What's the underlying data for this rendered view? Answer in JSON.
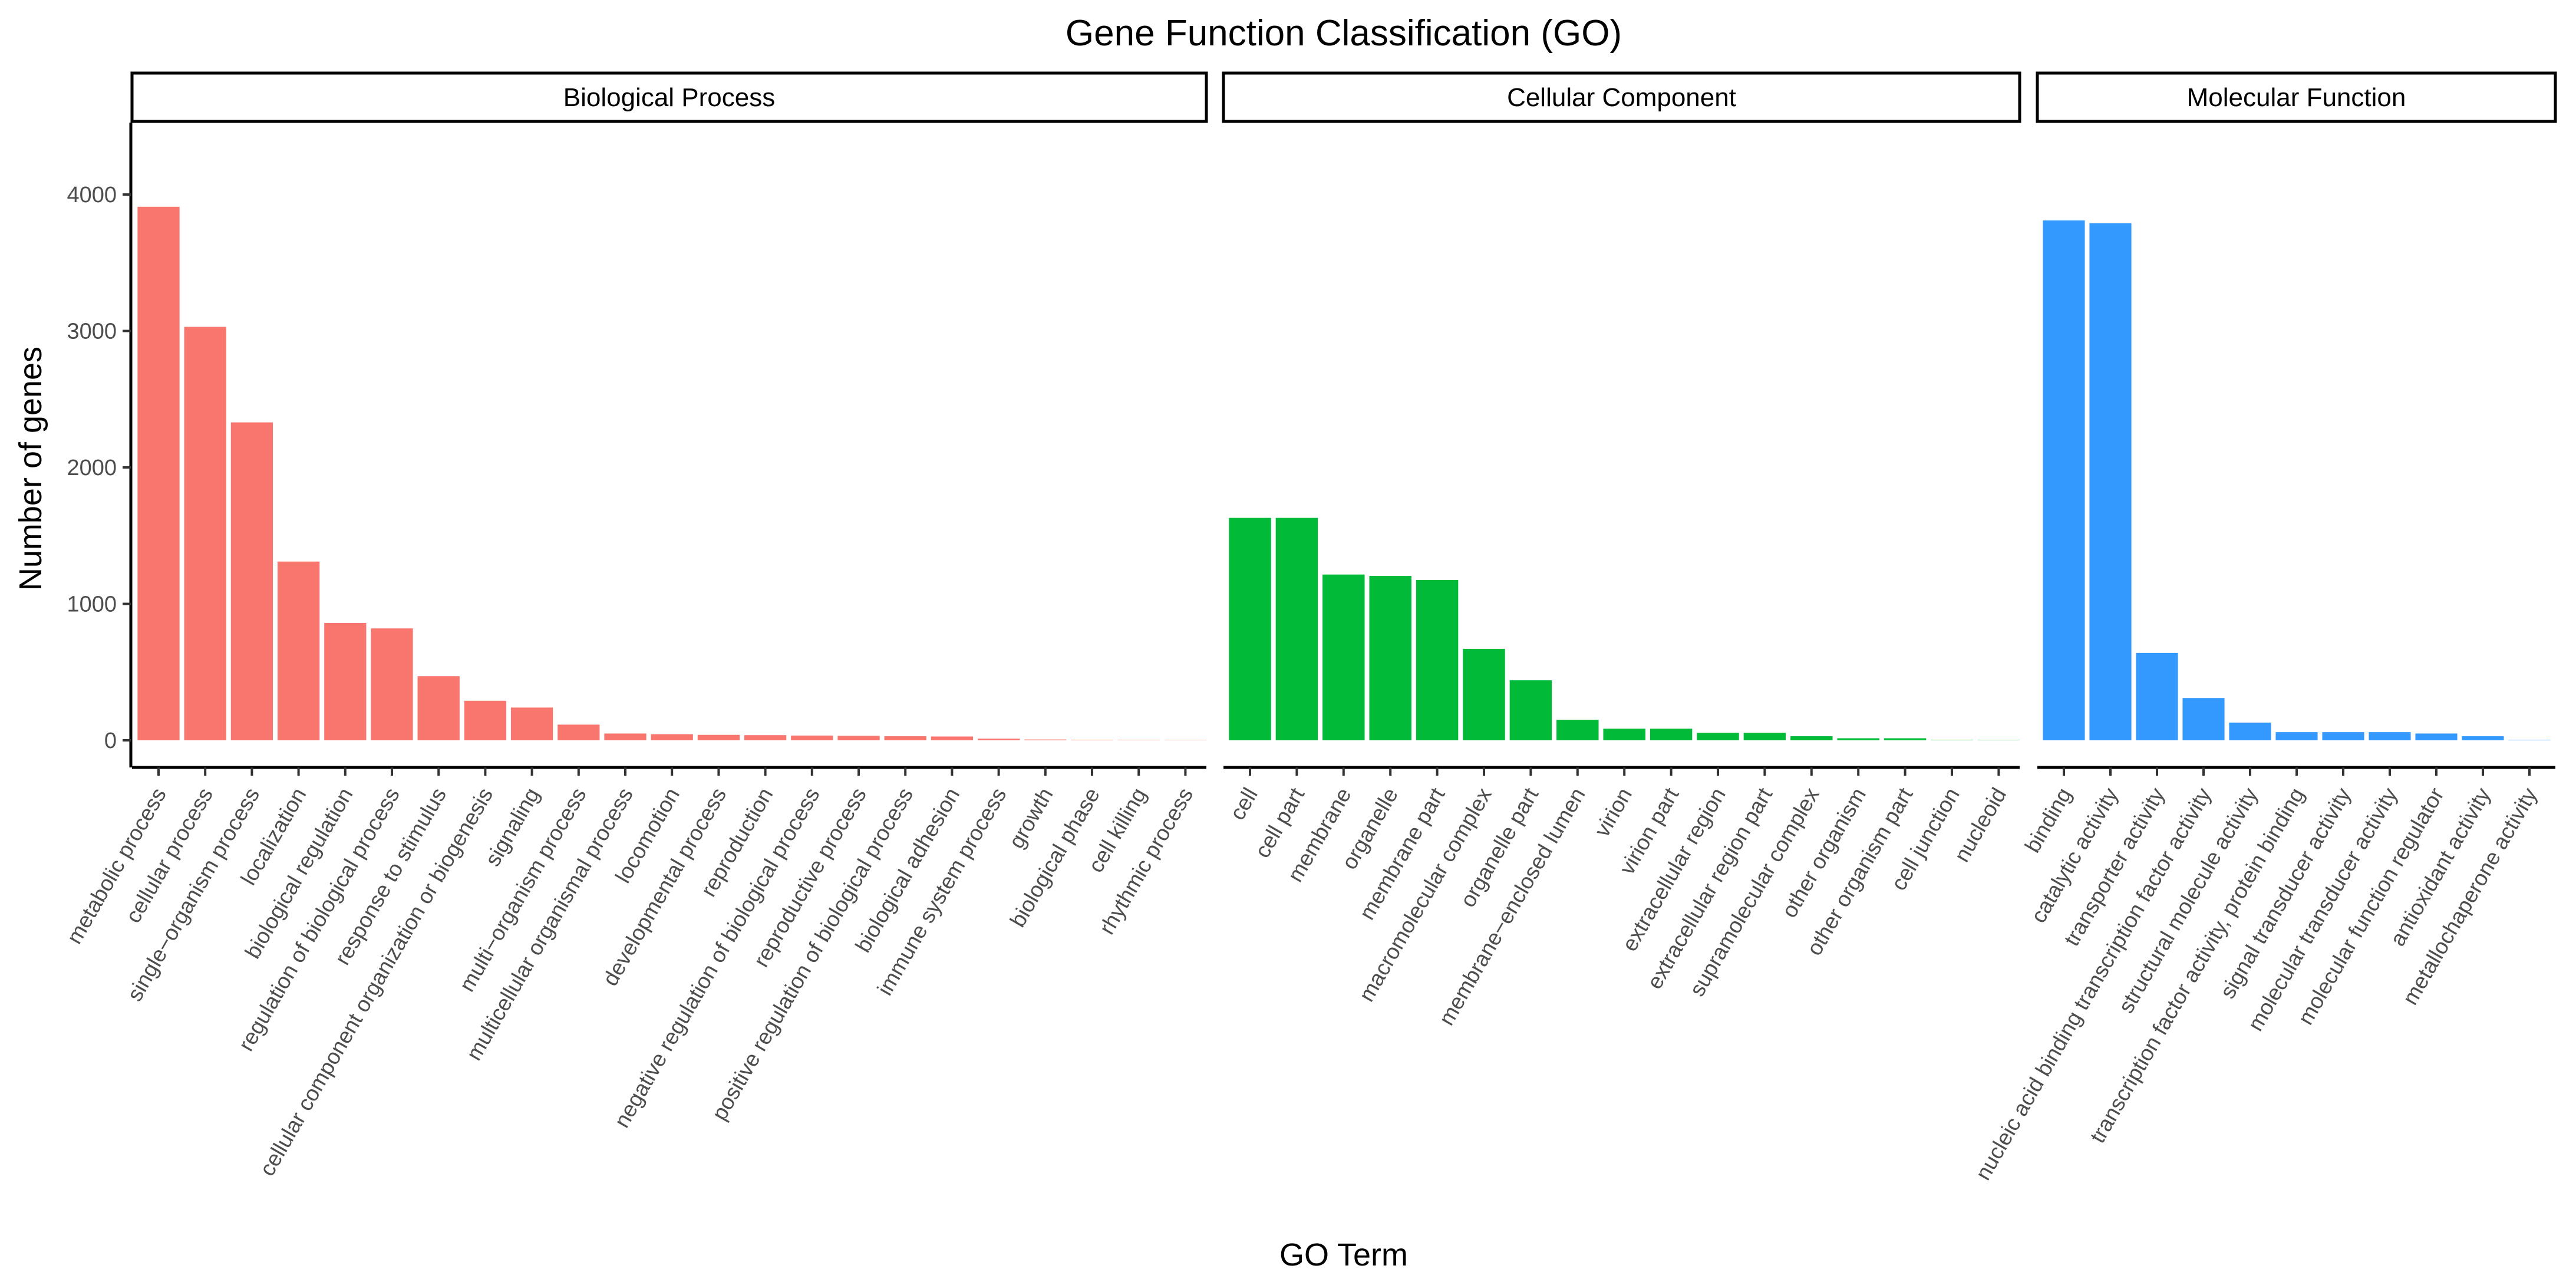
{
  "chart_data": {
    "type": "bar",
    "title": "Gene Function Classification (GO)",
    "xlabel": "GO Term",
    "ylabel": "Number of genes",
    "ylim": [
      0,
      4500
    ],
    "yticks": [
      0,
      1000,
      2000,
      3000,
      4000
    ],
    "grid": false,
    "panels": [
      {
        "name": "Biological Process",
        "color": "#F8766D",
        "categories": [
          "metabolic process",
          "cellular process",
          "single−organism process",
          "localization",
          "biological regulation",
          "regulation of biological process",
          "response to stimulus",
          "cellular component organization or biogenesis",
          "signaling",
          "multi−organism process",
          "multicellular organismal process",
          "locomotion",
          "developmental process",
          "reproduction",
          "negative regulation of biological process",
          "reproductive process",
          "positive regulation of biological process",
          "biological adhesion",
          "immune system process",
          "growth",
          "biological phase",
          "cell killing",
          "rhythmic process"
        ],
        "values": [
          3910,
          3030,
          2330,
          1310,
          860,
          820,
          470,
          290,
          240,
          115,
          50,
          45,
          40,
          38,
          35,
          33,
          30,
          28,
          12,
          6,
          4,
          3,
          2
        ]
      },
      {
        "name": "Cellular Component",
        "color": "#00BA38",
        "categories": [
          "cell",
          "cell part",
          "membrane",
          "organelle",
          "membrane part",
          "macromolecular complex",
          "organelle part",
          "membrane−enclosed lumen",
          "virion",
          "virion part",
          "extracellular region",
          "extracellular region part",
          "supramolecular complex",
          "other organism",
          "other organism part",
          "cell junction",
          "nucleoid"
        ],
        "values": [
          1630,
          1630,
          1215,
          1205,
          1175,
          670,
          440,
          150,
          85,
          85,
          55,
          55,
          30,
          15,
          15,
          3,
          2
        ]
      },
      {
        "name": "Molecular Function",
        "color": "#3399FF",
        "categories": [
          "binding",
          "catalytic activity",
          "transporter activity",
          "nucleic acid binding transcription factor activity",
          "structural molecule activity",
          "transcription factor activity, protein binding",
          "signal transducer activity",
          "molecular transducer activity",
          "molecular function regulator",
          "antioxidant activity",
          "metallochaperone activity"
        ],
        "values": [
          3810,
          3790,
          640,
          310,
          130,
          60,
          60,
          60,
          50,
          30,
          4
        ]
      }
    ]
  }
}
